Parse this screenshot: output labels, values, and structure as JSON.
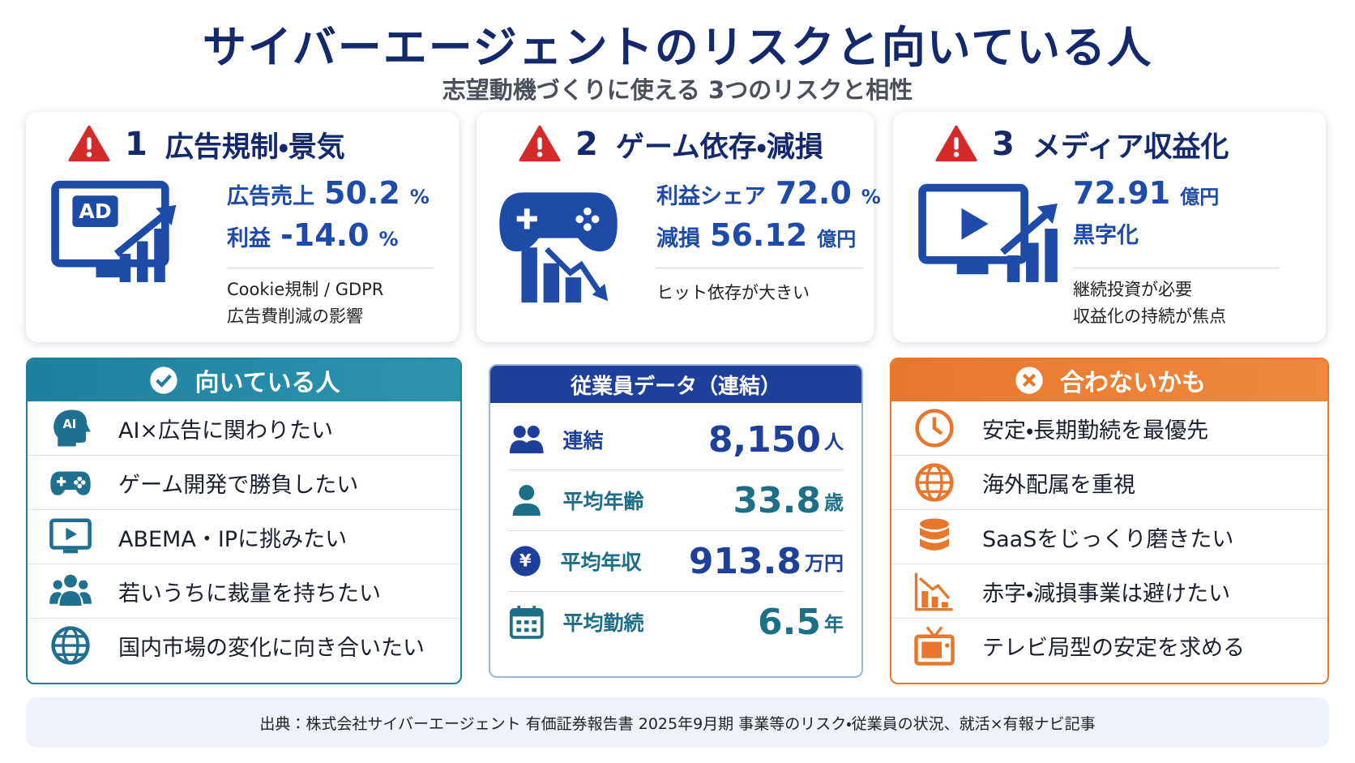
{
  "title": "サイバーエージェントのリスクと向いている人",
  "subtitle": "志望動機づくりに使える 3つのリスクと相性",
  "risks": [
    {
      "number": "1",
      "title": "広告規制・景気",
      "icon_text": "AD",
      "stats": [
        {
          "label": "広告売上",
          "value": "50.2",
          "unit": "%"
        },
        {
          "label": "利益",
          "value": "-14.0",
          "unit": "%"
        }
      ],
      "notes": [
        "Cookie規制 / GDPR",
        "広告費削減の影響"
      ]
    },
    {
      "number": "2",
      "title": "ゲーム依存・減損",
      "stats": [
        {
          "label": "利益シェア",
          "value": "72.0",
          "unit": "%"
        },
        {
          "label": "減損",
          "value": "56.12",
          "unit": "億円"
        }
      ],
      "notes": [
        "ヒット依存が大きい"
      ]
    },
    {
      "number": "3",
      "title": "メディア収益化",
      "stats": [
        {
          "value": "72.91",
          "unit": "億円"
        },
        {
          "label": "黒字化"
        }
      ],
      "notes": [
        "継続投資が必要",
        "収益化の持続が焦点"
      ]
    }
  ],
  "suited": {
    "title": "向いている人",
    "items": [
      {
        "badge": "AI",
        "text": "AI×広告に関わりたい"
      },
      {
        "text": "ゲーム開発で勝負したい"
      },
      {
        "text": "ABEMA・IPに挑みたい"
      },
      {
        "text": "若いうちに裁量を持ちたい"
      },
      {
        "text": "国内市場の変化に向き合いたい"
      }
    ]
  },
  "employees": {
    "title": "従業員データ（連結）",
    "rows": [
      {
        "label": "連結",
        "value": "8,150",
        "unit": "人"
      },
      {
        "label": "平均年齢",
        "value": "33.8",
        "unit": "歳"
      },
      {
        "label": "平均年収",
        "value": "913.8",
        "unit": "万円",
        "badge": "¥"
      },
      {
        "label": "平均勤続",
        "value": "6.5",
        "unit": "年"
      }
    ]
  },
  "unsuited": {
    "title": "合わないかも",
    "items": [
      {
        "text": "安定・長期勤続を最優先"
      },
      {
        "text": "海外配属を重視"
      },
      {
        "text": "SaaSをじっくり磨きたい"
      },
      {
        "text": "赤字・減損事業は避けたい"
      },
      {
        "text": "テレビ局型の安定を求める"
      }
    ]
  },
  "source": "出典：株式会社サイバーエージェント 有価証券報告書 2025年9月期 事業等のリスク・従業員の状況、就活×有報ナビ記事"
}
